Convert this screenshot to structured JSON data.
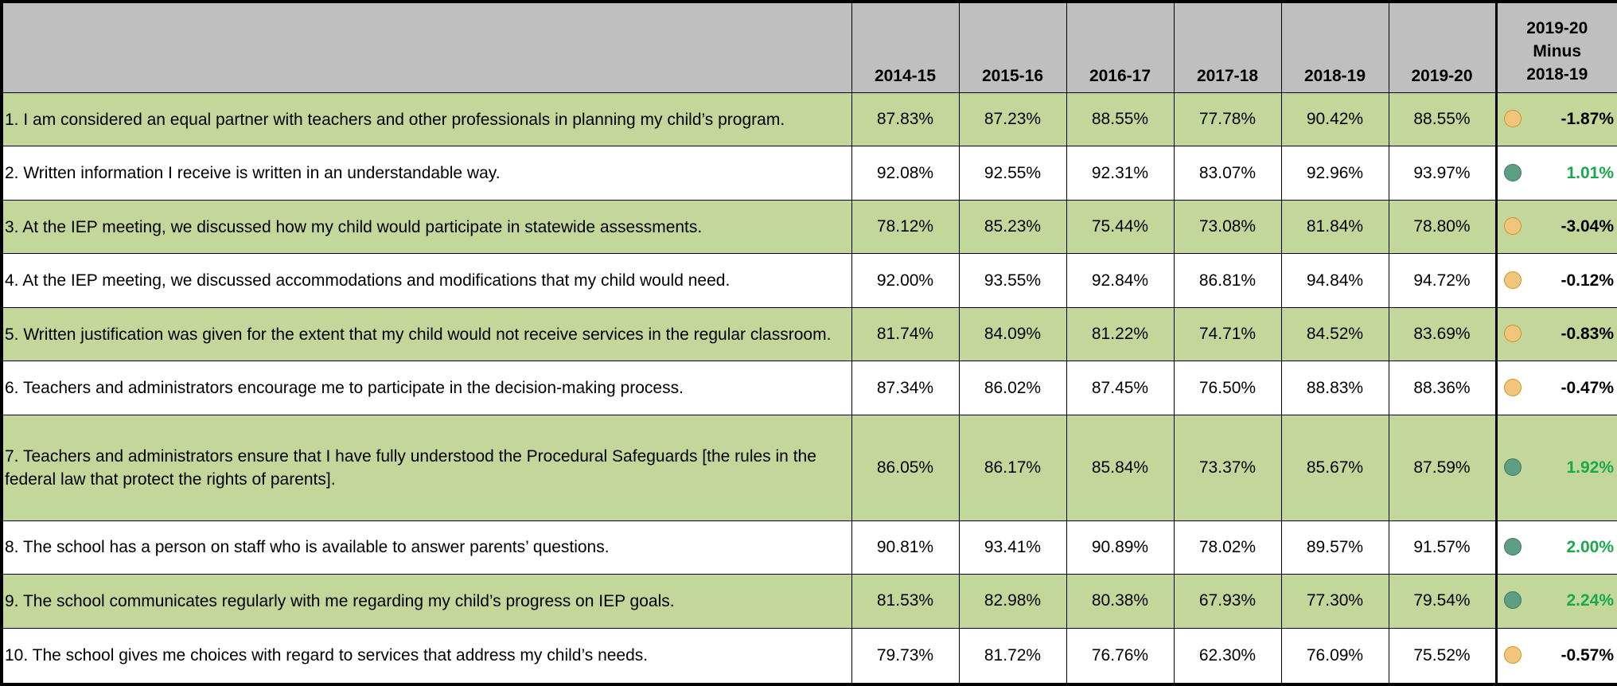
{
  "table": {
    "header": [
      "2014-15",
      "2015-16",
      "2016-17",
      "2017-18",
      "2018-19",
      "2019-20"
    ],
    "diff_header": [
      "2019-20",
      "Minus",
      "2018-19"
    ],
    "rows": [
      {
        "question": "1.  I am considered an equal partner with teachers and other professionals in planning my child’s program.",
        "values": [
          "87.83%",
          "87.23%",
          "88.55%",
          "77.78%",
          "90.42%",
          "88.55%"
        ],
        "diff": "-1.87%"
      },
      {
        "question": "2. Written information I receive is written in an understandable way.",
        "values": [
          "92.08%",
          "92.55%",
          "92.31%",
          "83.07%",
          "92.96%",
          "93.97%"
        ],
        "diff": "1.01%"
      },
      {
        "question": "3.  At the IEP meeting, we discussed how my child would participate in statewide assessments.",
        "values": [
          "78.12%",
          "85.23%",
          "75.44%",
          "73.08%",
          "81.84%",
          "78.80%"
        ],
        "diff": "-3.04%"
      },
      {
        "question": "4.  At the IEP meeting, we discussed accommodations and modifications that my child would need.",
        "values": [
          "92.00%",
          "93.55%",
          "92.84%",
          "86.81%",
          "94.84%",
          "94.72%"
        ],
        "diff": "-0.12%"
      },
      {
        "question": "5.  Written justification was given for the extent that my child would not receive services in the regular classroom.",
        "values": [
          "81.74%",
          "84.09%",
          "81.22%",
          "74.71%",
          "84.52%",
          "83.69%"
        ],
        "diff": "-0.83%"
      },
      {
        "question": "6.  Teachers and administrators encourage me to participate in the decision-making process.",
        "values": [
          "87.34%",
          "86.02%",
          "87.45%",
          "76.50%",
          "88.83%",
          "88.36%"
        ],
        "diff": "-0.47%"
      },
      {
        "question": "7.  Teachers and administrators ensure that I have fully understood the Procedural Safeguards [the rules in the federal law that protect the rights of parents].",
        "values": [
          "86.05%",
          "86.17%",
          "85.84%",
          "73.37%",
          "85.67%",
          "87.59%"
        ],
        "diff": "1.92%"
      },
      {
        "question": "8.  The school has a person on staff who is available to answer parents’ questions.",
        "values": [
          "90.81%",
          "93.41%",
          "90.89%",
          "78.02%",
          "89.57%",
          "91.57%"
        ],
        "diff": "2.00%"
      },
      {
        "question": "9. The school communicates regularly with me regarding my child’s progress on IEP goals.",
        "values": [
          "81.53%",
          "82.98%",
          "80.38%",
          "67.93%",
          "77.30%",
          "79.54%"
        ],
        "diff": "2.24%"
      },
      {
        "question": "10.  The school gives me choices with regard to services that address my child’s needs.",
        "values": [
          "79.73%",
          "81.72%",
          "76.76%",
          "62.30%",
          "76.09%",
          "75.52%"
        ],
        "diff": "-0.57%"
      }
    ]
  }
}
